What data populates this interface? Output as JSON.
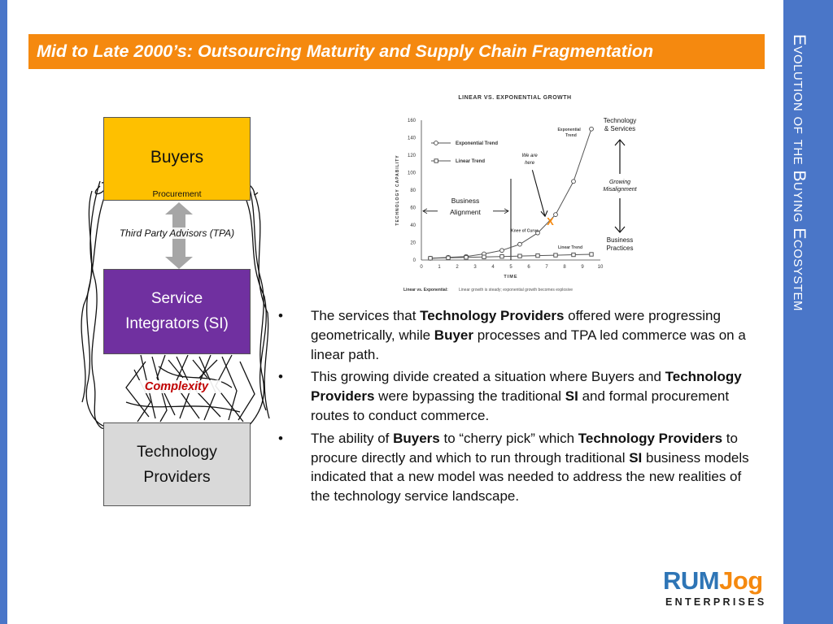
{
  "slide": {
    "title": "Mid to Late 2000’s: Outsourcing Maturity and Supply Chain Fragmentation",
    "side_title": "Evolution of the Buying Ecosystem"
  },
  "diagram": {
    "buyers_label": "Buyers",
    "procurement_label": "Procurement",
    "tpa_label": "Third Party Advisors (TPA)",
    "si_label_line1": "Service",
    "si_label_line2": "Integrators (SI)",
    "complexity_label": "Complexity",
    "tech_label_line1": "Technology",
    "tech_label_line2": "Providers"
  },
  "chart_data": {
    "type": "line",
    "title": "LINEAR VS. EXPONENTIAL GROWTH",
    "xlabel": "TIME",
    "ylabel": "TECHNOLOGY CAPABILITY",
    "xlim": [
      0,
      10
    ],
    "ylim": [
      0,
      160
    ],
    "x_ticks": [
      "0",
      "1",
      "2",
      "3",
      "4",
      "5",
      "6",
      "7",
      "8",
      "9",
      "10"
    ],
    "y_ticks": [
      "0",
      "20",
      "40",
      "60",
      "80",
      "100",
      "120",
      "140",
      "160"
    ],
    "series": [
      {
        "name": "Exponential Trend",
        "marker": "circle",
        "x": [
          0.5,
          1.5,
          2.5,
          3.5,
          4.5,
          5.5,
          6.5,
          7.5,
          8.5,
          9.5
        ],
        "y": [
          2,
          3,
          4,
          7,
          11,
          18,
          31,
          52,
          90,
          150
        ]
      },
      {
        "name": "Linear Trend",
        "marker": "square",
        "x": [
          0.5,
          1.5,
          2.5,
          3.5,
          4.5,
          5.5,
          6.5,
          7.5,
          8.5,
          9.5
        ],
        "y": [
          2,
          2.5,
          3,
          3.5,
          4,
          4.5,
          5,
          5.5,
          6,
          6.5
        ]
      }
    ],
    "annotations": {
      "exp_label": [
        "Exponential",
        "Trend"
      ],
      "linear_label": "Linear Trend",
      "knee_label": "Knee of Curve",
      "we_are_here": [
        "We are",
        "here"
      ],
      "x_mark": "X",
      "business_alignment": [
        "Business",
        "Alignment"
      ],
      "caption_bold": "Linear vs. Exponential:",
      "caption_text": " Linear growth is steady; exponential growth becomes explosive"
    },
    "side_labels": {
      "top": [
        "Technology",
        "& Services"
      ],
      "middle": [
        "Growing",
        "Misalignment"
      ],
      "bottom": [
        "Business",
        "Practices"
      ]
    },
    "legend_position": "top-left",
    "grid": false
  },
  "bullets": [
    [
      {
        "t": "The services that ",
        "b": false
      },
      {
        "t": "Technology Providers",
        "b": true
      },
      {
        "t": " offered were progressing geometrically, while ",
        "b": false
      },
      {
        "t": "Buyer",
        "b": true
      },
      {
        "t": " processes and TPA led commerce was on a linear path.",
        "b": false
      }
    ],
    [
      {
        "t": "This growing divide created a situation where Buyers and ",
        "b": false
      },
      {
        "t": "Technology Providers",
        "b": true
      },
      {
        "t": " were bypassing the traditional ",
        "b": false
      },
      {
        "t": "SI",
        "b": true
      },
      {
        "t": " and formal procurement routes to conduct commerce.",
        "b": false
      }
    ],
    [
      {
        "t": "The ability of ",
        "b": false
      },
      {
        "t": "Buyers",
        "b": true
      },
      {
        "t": " to “cherry pick” which ",
        "b": false
      },
      {
        "t": "Technology Providers",
        "b": true
      },
      {
        "t": " to procure directly and which to run through traditional ",
        "b": false
      },
      {
        "t": "SI",
        "b": true
      },
      {
        "t": " business models indicated that a new model was needed to address the new realities of the technology service landscape.",
        "b": false
      }
    ]
  ],
  "bullet_symbol": "•",
  "logo": {
    "top_part1": "RUM",
    "top_part2": "Jog",
    "bottom": "ENTERPRISES"
  },
  "colors": {
    "accent_blue": "#4a76c8",
    "title_orange": "#f5890f",
    "buyers_yellow": "#fec000",
    "si_purple": "#7030a0",
    "tech_gray": "#d9d9d9",
    "complexity_red": "#c00000",
    "x_mark_orange": "#f5890f"
  }
}
